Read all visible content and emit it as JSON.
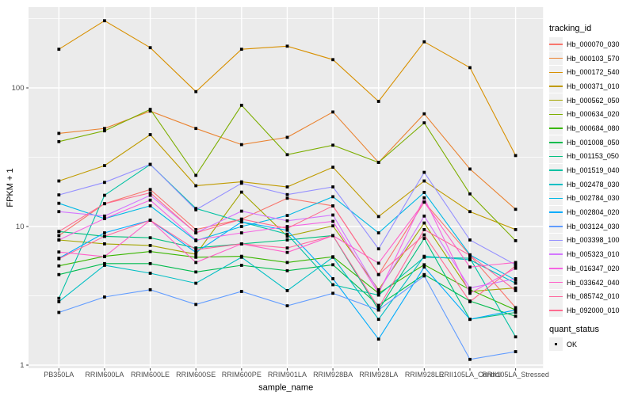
{
  "chart": {
    "ylabel": "FPKM + 1",
    "xlabel": "sample_name",
    "panel_bg": "#EBEBEB",
    "grid_color": "#FFFFFF",
    "tick_label_color": "#4D4D4D",
    "point_color": "#000000"
  },
  "legend": {
    "tracking_title": "tracking_id",
    "quant_title": "quant_status",
    "quant_ok_label": "OK"
  },
  "chart_data": {
    "type": "line",
    "title": "",
    "xlabel": "sample_name",
    "ylabel": "FPKM + 1",
    "y_scale": "log10",
    "ylim": [
      1,
      400
    ],
    "y_major_ticks": [
      1,
      10,
      100
    ],
    "y_minor_ticks": [
      3.1623,
      31.623,
      316.23
    ],
    "grid": true,
    "legend_position": "right",
    "legend_titles": [
      "tracking_id",
      "quant_status"
    ],
    "quant_status_values": [
      "OK"
    ],
    "categories": [
      "PB350LA",
      "RRIM600LA",
      "RRIM600LE",
      "RRIM600SE",
      "RRIM600PE",
      "RRIM901LA",
      "RRIM928BA",
      "RRIM928LA",
      "RRIM928LE",
      "RRII105LA_Control",
      "RRII105LA_Stressed"
    ],
    "series": [
      {
        "name": "Hb_000070_030",
        "color": "#F8766D",
        "values": [
          8.6,
          14.6,
          18.5,
          9.5,
          11.3,
          16.0,
          14.1,
          4.5,
          15.0,
          6.2,
          2.6
        ]
      },
      {
        "name": "Hb_000103_570",
        "color": "#EA8331",
        "values": [
          47,
          51,
          68,
          51,
          39,
          44,
          67,
          29,
          65,
          26,
          13.3
        ]
      },
      {
        "name": "Hb_000172_540",
        "color": "#D89000",
        "values": [
          190,
          305,
          195,
          94,
          190,
          200,
          160,
          80,
          215,
          140,
          32.5
        ]
      },
      {
        "name": "Hb_000371_010",
        "color": "#C09B00",
        "values": [
          21.3,
          27.5,
          46,
          19.7,
          21,
          19.3,
          26.8,
          11.8,
          21.3,
          12.8,
          9.5
        ]
      },
      {
        "name": "Hb_000562_050",
        "color": "#A3A500",
        "values": [
          8.0,
          7.5,
          7.3,
          6.3,
          17.7,
          8.5,
          10.1,
          3.5,
          10.6,
          3.4,
          3.6
        ]
      },
      {
        "name": "Hb_000634_020",
        "color": "#7CAE00",
        "values": [
          41,
          49,
          70,
          23.4,
          75,
          33,
          38.6,
          29,
          56,
          17.2,
          7.9
        ]
      },
      {
        "name": "Hb_000684_080",
        "color": "#39B600",
        "values": [
          5.2,
          6.1,
          6.6,
          6.0,
          6.1,
          5.5,
          6.05,
          3.3,
          5.3,
          3.5,
          2.5
        ]
      },
      {
        "name": "Hb_001008_050",
        "color": "#00BB4E",
        "values": [
          4.5,
          5.4,
          5.4,
          4.7,
          5.25,
          4.8,
          5.3,
          2.7,
          4.5,
          2.9,
          2.25
        ]
      },
      {
        "name": "Hb_001153_050",
        "color": "#00BF7D",
        "values": [
          9.2,
          8.5,
          8.3,
          7.0,
          7.5,
          8.0,
          8.6,
          2.5,
          8.2,
          2.14,
          2.4
        ]
      },
      {
        "name": "Hb_001519_040",
        "color": "#00C1A3",
        "values": [
          3.03,
          16.8,
          28,
          13.5,
          10.8,
          8.8,
          3.8,
          3.2,
          6.0,
          5.9,
          1.6
        ]
      },
      {
        "name": "Hb_002478_030",
        "color": "#00BFC4",
        "values": [
          2.87,
          5.25,
          4.6,
          3.9,
          6.0,
          3.45,
          6.0,
          2.14,
          6.1,
          5.75,
          3.9
        ]
      },
      {
        "name": "Hb_002784_030",
        "color": "#00B8E5",
        "values": [
          14.7,
          11.4,
          14.1,
          7.9,
          10.0,
          12.0,
          16.4,
          9.0,
          17.6,
          6.25,
          4.1
        ]
      },
      {
        "name": "Hb_002804_020",
        "color": "#00ACFC",
        "values": [
          5.9,
          9.0,
          11.1,
          6.5,
          10.8,
          9.4,
          4.2,
          1.54,
          5.1,
          2.14,
          2.5
        ]
      },
      {
        "name": "Hb_003124_030",
        "color": "#619CFF",
        "values": [
          2.4,
          3.1,
          3.5,
          2.74,
          3.4,
          2.68,
          3.3,
          2.5,
          4.4,
          1.1,
          1.25
        ]
      },
      {
        "name": "Hb_003398_100",
        "color": "#9590FF",
        "values": [
          16.9,
          20.8,
          28.1,
          13.2,
          20.5,
          17.0,
          19.3,
          6.9,
          24.6,
          8.0,
          5.3
        ]
      },
      {
        "name": "Hb_005323_010",
        "color": "#D376FF",
        "values": [
          12.8,
          11.9,
          16.8,
          9.0,
          12.9,
          11.0,
          12.1,
          3.4,
          11.9,
          3.6,
          4.2
        ]
      },
      {
        "name": "Hb_016347_020",
        "color": "#F564E3",
        "values": [
          8.0,
          11.4,
          15.5,
          8.0,
          9.0,
          10.0,
          10.9,
          3.3,
          16.1,
          3.3,
          5.0
        ]
      },
      {
        "name": "Hb_033642_040",
        "color": "#FF61C9",
        "values": [
          6.55,
          6.06,
          11.1,
          5.5,
          7.5,
          6.5,
          8.6,
          5.44,
          15.0,
          5.1,
          5.5
        ]
      },
      {
        "name": "Hb_085742_010",
        "color": "#FF689E",
        "values": [
          5.85,
          8.5,
          11.1,
          6.8,
          7.5,
          7.0,
          8.6,
          2.6,
          9.5,
          6.2,
          3.45
        ]
      },
      {
        "name": "Hb_092000_010",
        "color": "#FF6C91",
        "values": [
          9.2,
          14.6,
          17.5,
          9.0,
          11.3,
          9.7,
          14.1,
          4.5,
          8.7,
          2.87,
          5.2
        ]
      }
    ]
  }
}
